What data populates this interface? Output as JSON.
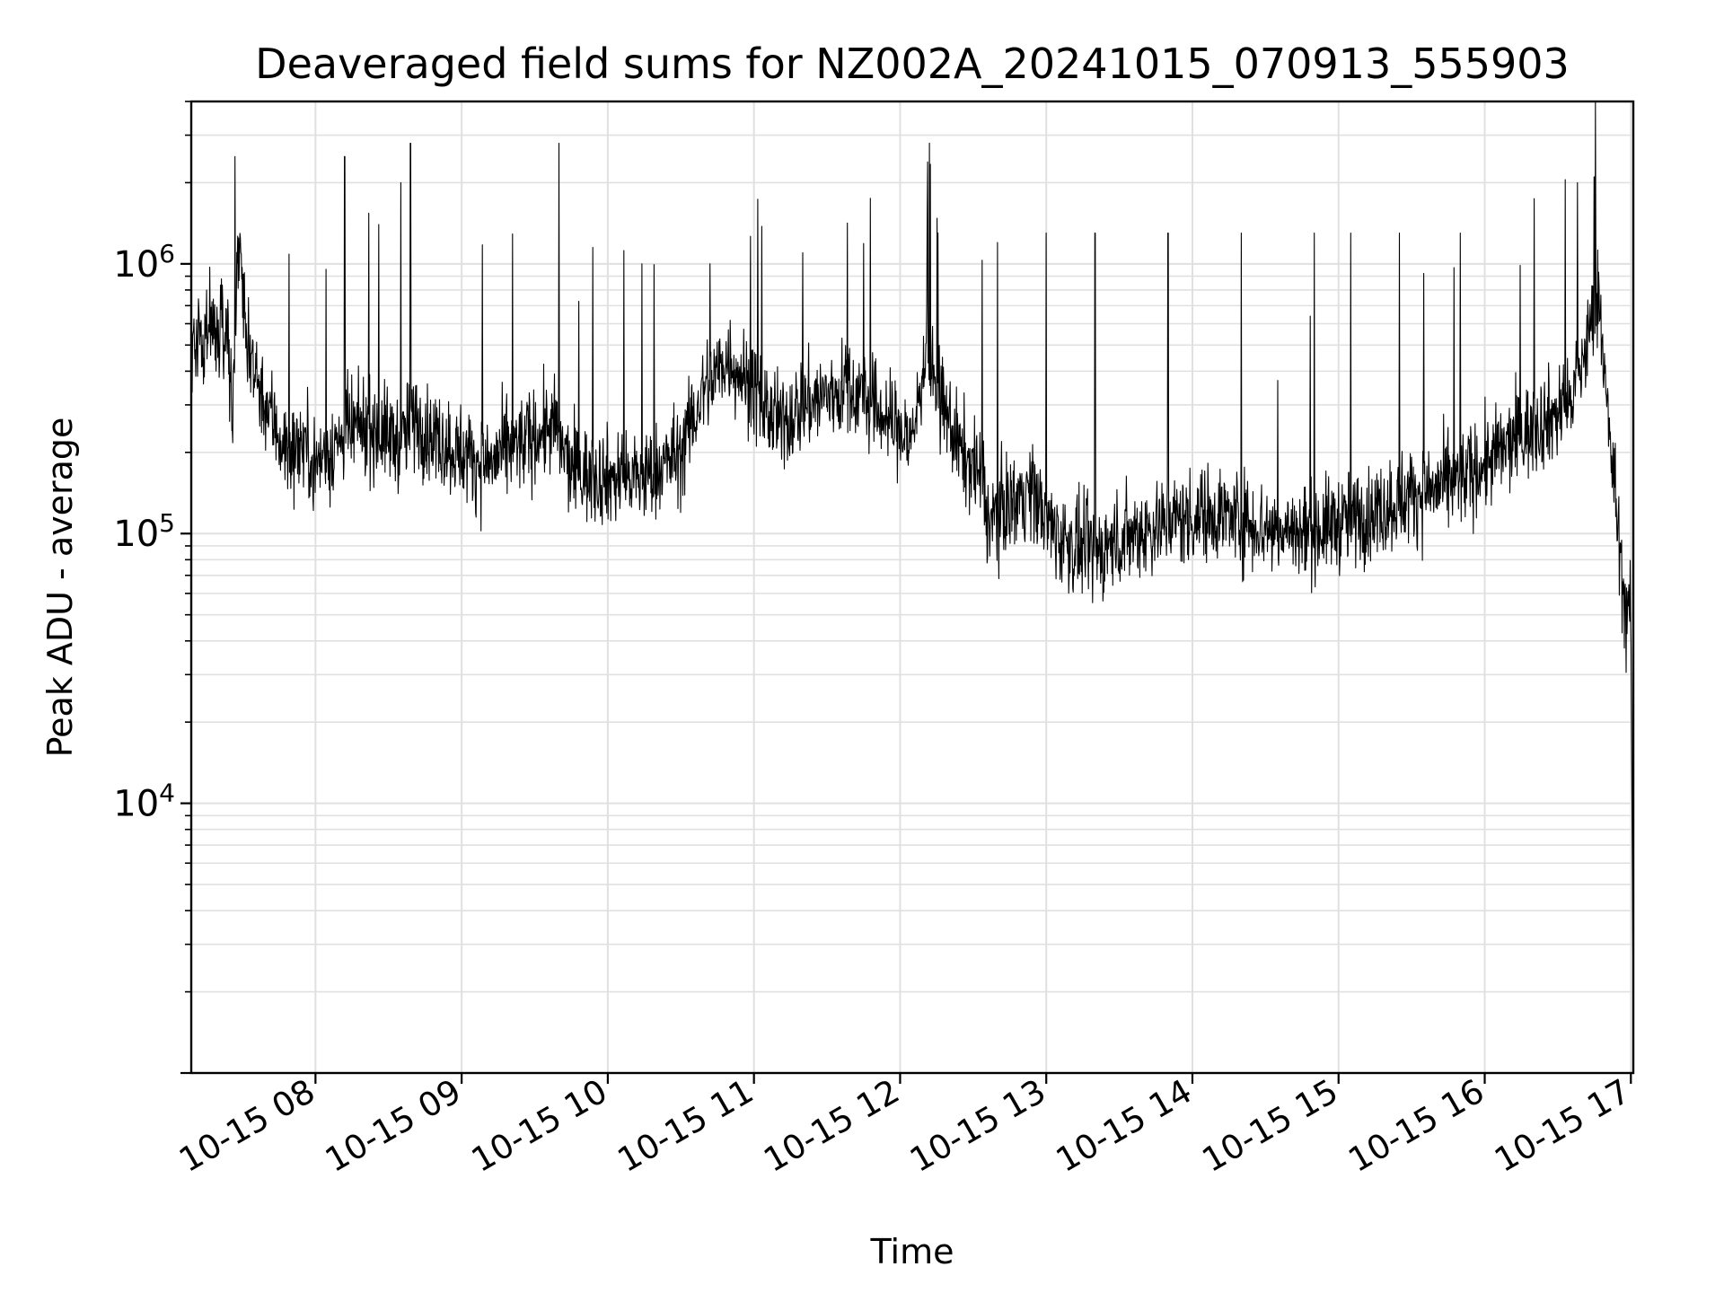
{
  "chart_data": {
    "type": "line",
    "title": "Deaveraged field sums for NZ002A_20241015_070913_555903",
    "xlabel": "Time",
    "ylabel": "Peak ADU - average",
    "yscale": "log",
    "ylim": [
      1000,
      4000000
    ],
    "xlim": [
      "2024-10-15 07:09",
      "2024-10-15 17:01"
    ],
    "grid": true,
    "line_color": "#000000",
    "grid_color": "#e0e0e0",
    "x_ticks": [
      "10-15 08",
      "10-15 09",
      "10-15 10",
      "10-15 11",
      "10-15 12",
      "10-15 13",
      "10-15 14",
      "10-15 15",
      "10-15 16",
      "10-15 17"
    ],
    "y_ticks": [
      {
        "base": "10",
        "exp": "4",
        "value": 10000
      },
      {
        "base": "10",
        "exp": "5",
        "value": 100000
      },
      {
        "base": "10",
        "exp": "6",
        "value": 1000000
      }
    ],
    "series": [
      {
        "x": [
          "2024-10-15 07:09",
          "2024-10-15 07:15",
          "2024-10-15 07:20",
          "2024-10-15 07:24",
          "2024-10-15 07:26",
          "2024-10-15 07:28",
          "2024-10-15 07:33",
          "2024-10-15 07:40",
          "2024-10-15 07:48",
          "2024-10-15 07:55",
          "2024-10-15 08:00",
          "2024-10-15 08:12",
          "2024-10-15 08:20",
          "2024-10-15 08:35",
          "2024-10-15 08:40",
          "2024-10-15 08:55",
          "2024-10-15 09:10",
          "2024-10-15 09:30",
          "2024-10-15 09:38",
          "2024-10-15 09:45",
          "2024-10-15 10:05",
          "2024-10-15 10:15",
          "2024-10-15 10:30",
          "2024-10-15 10:40",
          "2024-10-15 10:50",
          "2024-10-15 11:10",
          "2024-10-15 11:20",
          "2024-10-15 11:40",
          "2024-10-15 11:58",
          "2024-10-15 12:05",
          "2024-10-15 12:10",
          "2024-10-15 12:25",
          "2024-10-15 12:34",
          "2024-10-15 12:36",
          "2024-10-15 12:45",
          "2024-10-15 12:54",
          "2024-10-15 13:00",
          "2024-10-15 13:10",
          "2024-10-15 13:20",
          "2024-10-15 13:35",
          "2024-10-15 13:50",
          "2024-10-15 14:10",
          "2024-10-15 14:30",
          "2024-10-15 14:45",
          "2024-10-15 15:00",
          "2024-10-15 15:15",
          "2024-10-15 15:30",
          "2024-10-15 15:45",
          "2024-10-15 16:00",
          "2024-10-15 16:20",
          "2024-10-15 16:35",
          "2024-10-15 16:42",
          "2024-10-15 16:47",
          "2024-10-15 16:50",
          "2024-10-15 16:55",
          "2024-10-15 16:58",
          "2024-10-15 17:00",
          "2024-10-15 17:01"
        ],
        "y": [
          500000,
          600000,
          550000,
          600000,
          250000,
          1200000,
          450000,
          300000,
          200000,
          220000,
          180000,
          230000,
          250000,
          220000,
          260000,
          210000,
          180000,
          230000,
          250000,
          170000,
          160000,
          160000,
          200000,
          350000,
          450000,
          250000,
          300000,
          350000,
          250000,
          220000,
          450000,
          200000,
          160000,
          110000,
          130000,
          150000,
          110000,
          90000,
          85000,
          100000,
          110000,
          120000,
          105000,
          100000,
          110000,
          120000,
          140000,
          150000,
          180000,
          250000,
          300000,
          500000,
          800000,
          300000,
          100000,
          48000,
          50000,
          1500
        ]
      }
    ],
    "spikes": [
      {
        "x": "2024-10-15 07:27",
        "y": 2500000
      },
      {
        "x": "2024-10-15 08:12",
        "y": 2500000
      },
      {
        "x": "2024-10-15 08:26",
        "y": 1400000
      },
      {
        "x": "2024-10-15 08:35",
        "y": 2000000
      },
      {
        "x": "2024-10-15 08:39",
        "y": 2800000
      },
      {
        "x": "2024-10-15 09:40",
        "y": 2800000
      },
      {
        "x": "2024-10-15 10:14",
        "y": 1000000
      },
      {
        "x": "2024-10-15 10:42",
        "y": 1000000
      },
      {
        "x": "2024-10-15 11:20",
        "y": 1100000
      },
      {
        "x": "2024-10-15 12:40",
        "y": 1200000
      },
      {
        "x": "2024-10-15 13:00",
        "y": 1300000
      },
      {
        "x": "2024-10-15 13:20",
        "y": 1300000
      },
      {
        "x": "2024-10-15 13:50",
        "y": 1300000
      },
      {
        "x": "2024-10-15 14:20",
        "y": 1300000
      },
      {
        "x": "2024-10-15 14:50",
        "y": 1300000
      },
      {
        "x": "2024-10-15 15:05",
        "y": 1300000
      },
      {
        "x": "2024-10-15 15:25",
        "y": 1300000
      },
      {
        "x": "2024-10-15 15:50",
        "y": 1300000
      },
      {
        "x": "2024-10-15 16:38",
        "y": 2000000
      },
      {
        "x": "2024-10-15 16:45",
        "y": 2100000
      }
    ]
  }
}
